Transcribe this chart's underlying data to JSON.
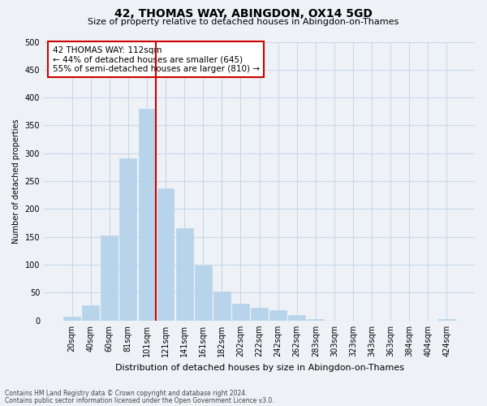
{
  "title": "42, THOMAS WAY, ABINGDON, OX14 5GD",
  "subtitle": "Size of property relative to detached houses in Abingdon-on-Thames",
  "xlabel": "Distribution of detached houses by size in Abingdon-on-Thames",
  "ylabel": "Number of detached properties",
  "bar_labels": [
    "20sqm",
    "40sqm",
    "60sqm",
    "81sqm",
    "101sqm",
    "121sqm",
    "141sqm",
    "161sqm",
    "182sqm",
    "202sqm",
    "222sqm",
    "242sqm",
    "262sqm",
    "283sqm",
    "303sqm",
    "323sqm",
    "343sqm",
    "363sqm",
    "384sqm",
    "404sqm",
    "424sqm"
  ],
  "bar_heights": [
    7,
    27,
    153,
    291,
    380,
    237,
    166,
    99,
    52,
    30,
    23,
    18,
    10,
    2,
    0,
    0,
    0,
    0,
    0,
    0,
    2
  ],
  "bar_color": "#b8d4ea",
  "bar_edge_color": "#b8d4ea",
  "vline_color": "#cc0000",
  "ylim": [
    0,
    500
  ],
  "yticks": [
    0,
    50,
    100,
    150,
    200,
    250,
    300,
    350,
    400,
    450,
    500
  ],
  "annotation_title": "42 THOMAS WAY: 112sqm",
  "annotation_line1": "← 44% of detached houses are smaller (645)",
  "annotation_line2": "55% of semi-detached houses are larger (810) →",
  "annotation_box_facecolor": "#ffffff",
  "annotation_box_edgecolor": "#cc0000",
  "footnote1": "Contains HM Land Registry data © Crown copyright and database right 2024.",
  "footnote2": "Contains public sector information licensed under the Open Government Licence v3.0.",
  "grid_color": "#c8d8e8",
  "background_color": "#eef2f7",
  "title_fontsize": 10,
  "subtitle_fontsize": 8,
  "xlabel_fontsize": 8,
  "ylabel_fontsize": 7,
  "tick_fontsize": 7,
  "annot_fontsize": 7.5,
  "footnote_fontsize": 5.5
}
